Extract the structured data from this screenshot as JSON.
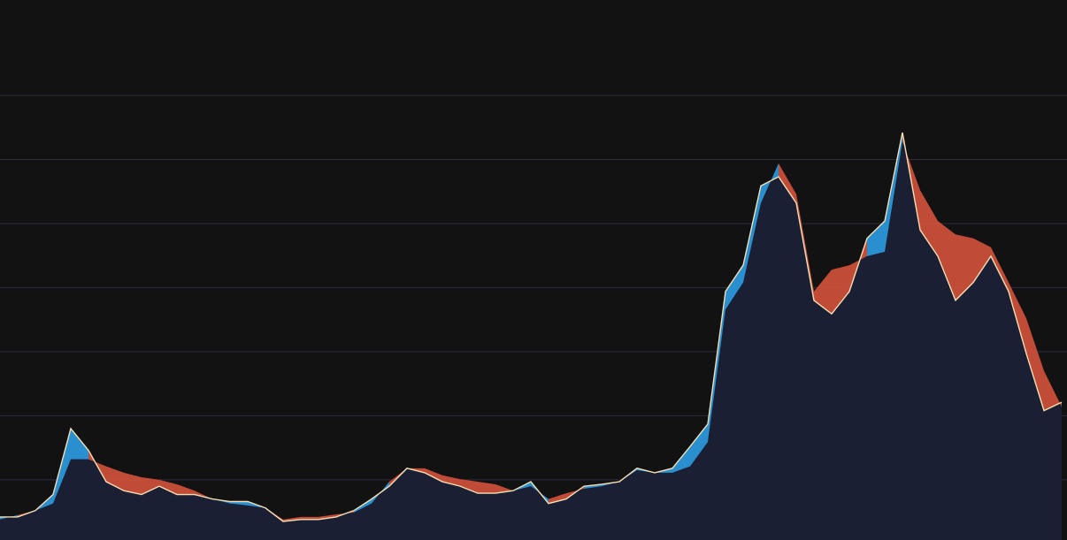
{
  "chart_data": {
    "type": "line",
    "x": [
      0,
      1,
      2,
      3,
      4,
      5,
      6,
      7,
      8,
      9,
      10,
      11,
      12,
      13,
      14,
      15,
      16,
      17,
      18,
      19,
      20,
      21,
      22,
      23,
      24,
      25,
      26,
      27,
      28,
      29,
      30,
      31,
      32,
      33,
      34,
      35,
      36,
      37,
      38,
      39,
      40,
      41,
      42,
      43,
      44,
      45,
      46,
      47,
      48,
      49,
      50,
      51,
      52,
      53,
      54,
      55,
      56,
      57,
      58,
      59,
      60
    ],
    "xlim": [
      0,
      60.3
    ],
    "ylim": [
      0.06,
      8.49
    ],
    "yticks": [
      1,
      2,
      3,
      4,
      5,
      6,
      7
    ],
    "grid": true,
    "area_color": "#1b1f33",
    "up_color": "#2b9be0",
    "down_color": "#d4533c",
    "series": [
      {
        "color": "#f5deb3",
        "values": [
          0.42,
          0.42,
          0.52,
          0.77,
          1.8,
          1.46,
          0.97,
          0.83,
          0.77,
          0.9,
          0.77,
          0.77,
          0.7,
          0.66,
          0.66,
          0.56,
          0.35,
          0.38,
          0.38,
          0.42,
          0.52,
          0.7,
          0.9,
          1.18,
          1.11,
          0.97,
          0.9,
          0.79,
          0.79,
          0.83,
          0.97,
          0.63,
          0.7,
          0.9,
          0.93,
          0.97,
          1.18,
          1.11,
          1.18,
          1.52,
          1.87,
          3.94,
          4.35,
          5.59,
          5.73,
          5.32,
          3.8,
          3.59,
          3.94,
          4.77,
          5.04,
          6.42,
          4.9,
          4.49,
          3.8,
          4.08,
          4.49,
          3.94,
          2.97,
          2.08,
          2.21
        ]
      },
      {
        "values": [
          0.38,
          0.45,
          0.52,
          0.63,
          1.32,
          1.32,
          1.21,
          1.11,
          1.04,
          1.0,
          0.93,
          0.83,
          0.7,
          0.63,
          0.6,
          0.56,
          0.38,
          0.42,
          0.42,
          0.46,
          0.49,
          0.63,
          0.97,
          1.18,
          1.18,
          1.07,
          1.01,
          0.97,
          0.93,
          0.83,
          0.9,
          0.7,
          0.79,
          0.86,
          0.9,
          0.97,
          1.15,
          1.11,
          1.11,
          1.21,
          1.59,
          3.66,
          4.08,
          5.32,
          5.94,
          5.46,
          3.94,
          4.28,
          4.35,
          4.49,
          4.56,
          6.28,
          5.52,
          5.04,
          4.83,
          4.77,
          4.63,
          4.08,
          3.52,
          2.7,
          2.14
        ]
      }
    ]
  }
}
